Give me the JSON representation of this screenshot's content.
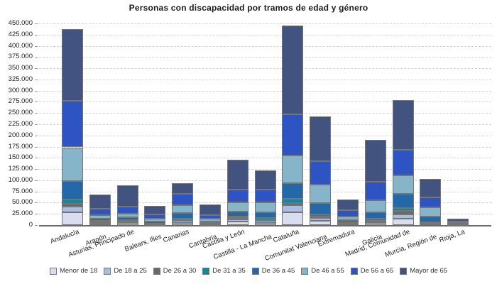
{
  "chart_data": {
    "type": "bar",
    "stacked": true,
    "title": "Personas con discapacidad por tramos de edad y género",
    "categories": [
      "Andalucía",
      "Aragón",
      "Asturias, Principado de",
      "Balears, Illes",
      "Canarias",
      "Cantabria",
      "Castilla y León",
      "Castilla - La Mancha",
      "Cataluña",
      "Comunitat Valenciana",
      "Extremadura",
      "Galicia",
      "Madrid, Comunidad de",
      "Murcia, Región de",
      "Rioja, La"
    ],
    "series": [
      {
        "name": "Menor de 18",
        "color": "#d8ddef",
        "values": [
          29000,
          3500,
          4000,
          1500,
          5000,
          2000,
          7500,
          5000,
          29000,
          9000,
          2500,
          4000,
          15000,
          2500,
          1000
        ]
      },
      {
        "name": "De 18 a 25",
        "color": "#a8bde0",
        "values": [
          12000,
          2700,
          3000,
          1200,
          4300,
          1300,
          5200,
          4000,
          16000,
          7000,
          2000,
          3500,
          8000,
          1700,
          700
        ]
      },
      {
        "name": "De 26 a 30",
        "color": "#68686e",
        "values": [
          6500,
          1500,
          1700,
          400,
          1500,
          500,
          2700,
          2500,
          4000,
          3000,
          1000,
          2500,
          8000,
          1000,
          400
        ]
      },
      {
        "name": "De 31 a 35",
        "color": "#0e87a3",
        "values": [
          10000,
          2000,
          2500,
          600,
          3000,
          1000,
          4200,
          4000,
          10000,
          5000,
          1500,
          5000,
          6500,
          1200,
          500
        ]
      },
      {
        "name": "De 36 a 45",
        "color": "#2368a9",
        "values": [
          40000,
          4200,
          6900,
          4300,
          13300,
          3200,
          10600,
          12500,
          34000,
          25000,
          4000,
          13500,
          32000,
          12000,
          1300
        ]
      },
      {
        "name": "De 46 a 55",
        "color": "#86b5c9",
        "values": [
          76000,
          8500,
          8000,
          5900,
          17500,
          5800,
          21200,
          23000,
          62000,
          41000,
          8000,
          27500,
          41000,
          21000,
          1500
        ]
      },
      {
        "name": "De 56 a 65",
        "color": "#2e53c3",
        "values": [
          103000,
          13700,
          14800,
          9500,
          25000,
          8000,
          27600,
          29000,
          92000,
          53000,
          15000,
          40000,
          58000,
          22000,
          3000
        ]
      },
      {
        "name": "Mayor de 65",
        "color": "#42537f",
        "values": [
          161500,
          31900,
          47800,
          18600,
          23500,
          23800,
          67400,
          42000,
          198000,
          99000,
          23000,
          94000,
          111000,
          42000,
          6600
        ]
      }
    ],
    "totals": [
      438000,
      68000,
      88700,
      42000,
      93100,
      45600,
      146400,
      122000,
      445000,
      242000,
      57000,
      190000,
      279500,
      103400,
      15000
    ],
    "ylim": [
      0,
      450000
    ],
    "ytick_step": 25000,
    "ytick_labels": [
      "0",
      "25.000",
      "50.000",
      "75.000",
      "100.000",
      "125.000",
      "150.000",
      "175.000",
      "200.000",
      "225.000",
      "250.000",
      "275.000",
      "300.000",
      "325.000",
      "350.000",
      "375.000",
      "400.000",
      "425.000",
      "450.000"
    ],
    "grid": "horizontal-dashed",
    "legend_position": "bottom",
    "xlabel": "",
    "ylabel": ""
  },
  "style": {
    "background": "#ffffff",
    "grid_color": "#d2d2d2",
    "axis_color": "#6b6b6b",
    "segment_border_color": "#757575",
    "text_color": "#222222"
  }
}
